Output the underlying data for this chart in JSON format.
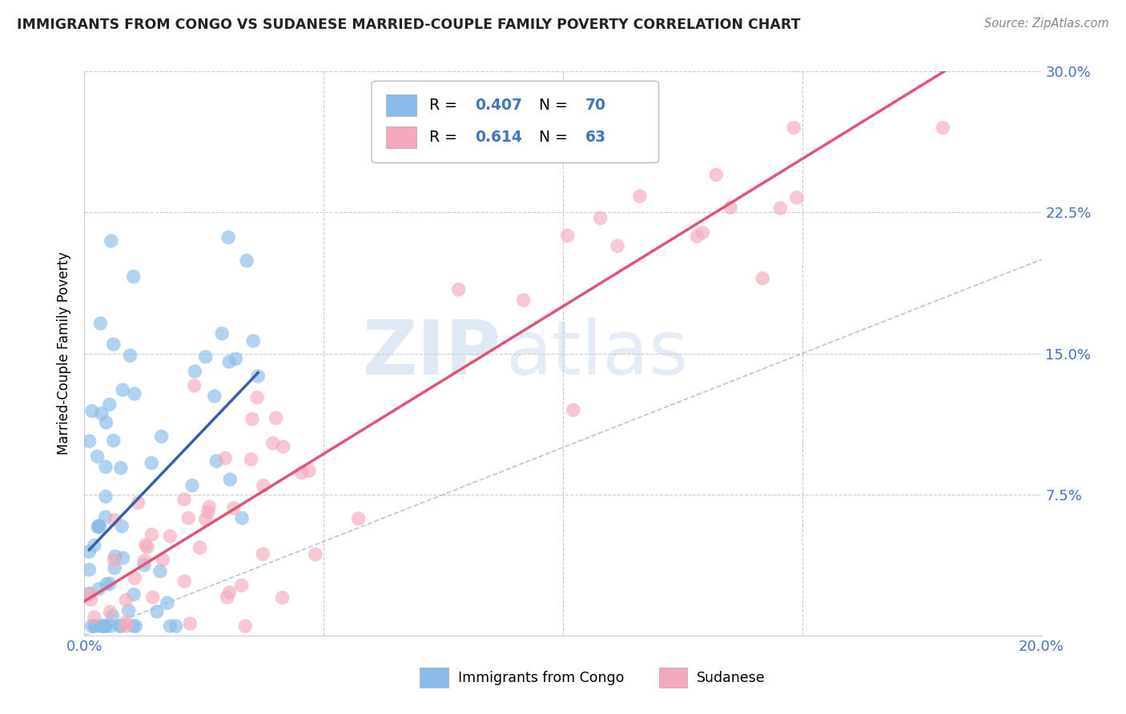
{
  "title": "IMMIGRANTS FROM CONGO VS SUDANESE MARRIED-COUPLE FAMILY POVERTY CORRELATION CHART",
  "source": "Source: ZipAtlas.com",
  "ylabel": "Married-Couple Family Poverty",
  "xlim": [
    0.0,
    0.2
  ],
  "ylim": [
    0.0,
    0.3
  ],
  "xtick_positions": [
    0.0,
    0.05,
    0.1,
    0.15,
    0.2
  ],
  "ytick_positions": [
    0.0,
    0.075,
    0.15,
    0.225,
    0.3
  ],
  "xtick_labels": [
    "0.0%",
    "",
    "",
    "",
    "20.0%"
  ],
  "ytick_labels": [
    "",
    "7.5%",
    "15.0%",
    "22.5%",
    "30.0%"
  ],
  "legend1_R": "0.407",
  "legend1_N": "70",
  "legend2_R": "0.614",
  "legend2_N": "63",
  "legend_bottom1": "Immigrants from Congo",
  "legend_bottom2": "Sudanese",
  "color_blue": "#89BCE8",
  "color_pink": "#F4AABC",
  "line_blue": "#3A5FA8",
  "line_pink": "#E05575",
  "line_diag_color": "#A0B8D8",
  "watermark_zip": "ZIP",
  "watermark_atlas": "atlas",
  "background_color": "#FFFFFF",
  "grid_color": "#CCCCCC",
  "tick_color": "#4472C4",
  "title_color": "#222222",
  "source_color": "#888888"
}
